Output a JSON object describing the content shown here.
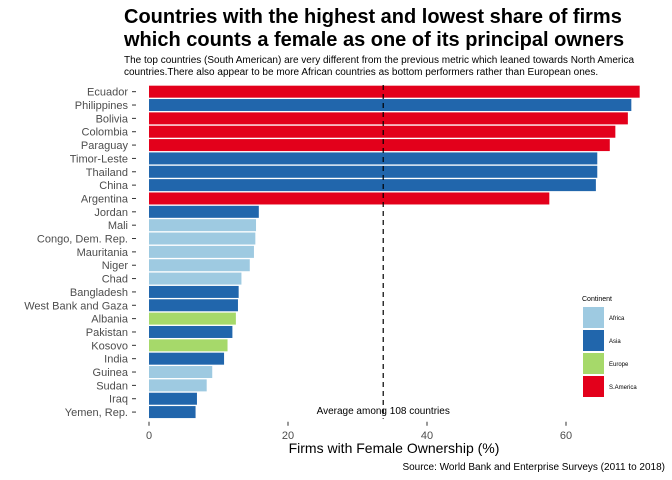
{
  "chart_data": {
    "type": "bar",
    "orientation": "horizontal",
    "title_lines": [
      "Countries with the highest and lowest share of firms",
      "which counts a female as one of its principal owners"
    ],
    "subtitle_lines": [
      "The top countries (South American) are very different from the previous metric which leaned towards North America",
      "countries.There also appear to be more African countries as bottom performers rather than European ones."
    ],
    "xlabel": "Firms with Female Ownership (%)",
    "ylabel": "",
    "caption": "Source: World Bank and Enterprise Surveys (2011 to 2018)",
    "xlim": [
      0,
      72
    ],
    "xticks": [
      0,
      20,
      40,
      60
    ],
    "reference_line": {
      "value": 33.7,
      "label": "Average among 108 countries",
      "style": "dashed"
    },
    "legend": {
      "title": "Continent",
      "position": "right",
      "items": [
        {
          "name": "Africa",
          "color": "#9ecae1"
        },
        {
          "name": "Asia",
          "color": "#2166ac"
        },
        {
          "name": "Europe",
          "color": "#a6d96a"
        },
        {
          "name": "S.America",
          "color": "#e3001b"
        }
      ]
    },
    "categories": [
      "Ecuador",
      "Philippines",
      "Bolivia",
      "Colombia",
      "Paraguay",
      "Timor-Leste",
      "Thailand",
      "China",
      "Argentina",
      "Jordan",
      "Mali",
      "Congo, Dem. Rep.",
      "Mauritania",
      "Niger",
      "Chad",
      "Bangladesh",
      "West Bank and Gaza",
      "Albania",
      "Pakistan",
      "Kosovo",
      "India",
      "Guinea",
      "Sudan",
      "Iraq",
      "Yemen, Rep."
    ],
    "values": [
      70.6,
      69.4,
      68.9,
      67.1,
      66.3,
      64.5,
      64.5,
      64.3,
      57.6,
      15.8,
      15.4,
      15.3,
      15.1,
      14.5,
      13.3,
      12.9,
      12.8,
      12.5,
      12.0,
      11.3,
      10.8,
      9.1,
      8.3,
      6.9,
      6.7
    ],
    "continents": [
      "S.America",
      "Asia",
      "S.America",
      "S.America",
      "S.America",
      "Asia",
      "Asia",
      "Asia",
      "S.America",
      "Asia",
      "Africa",
      "Africa",
      "Africa",
      "Africa",
      "Africa",
      "Asia",
      "Asia",
      "Europe",
      "Asia",
      "Europe",
      "Asia",
      "Africa",
      "Africa",
      "Asia",
      "Asia"
    ],
    "grid": false
  }
}
